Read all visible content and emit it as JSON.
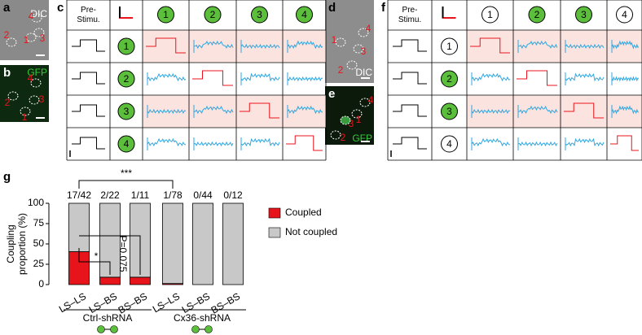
{
  "panels": {
    "a": {
      "letter": "a",
      "label": "DIC",
      "cells": [
        "4",
        "2",
        "3",
        "1"
      ]
    },
    "b": {
      "letter": "b",
      "label": "GFP",
      "cells": [
        "4",
        "2",
        "3",
        "1"
      ]
    },
    "c": {
      "letter": "c",
      "corner": "Pre-Stimu.",
      "columns": [
        "1",
        "2",
        "3",
        "4"
      ],
      "rows": [
        "1",
        "2",
        "3",
        "4"
      ]
    },
    "d": {
      "letter": "d",
      "label": "DIC",
      "cells": [
        "4",
        "1",
        "3",
        "2"
      ]
    },
    "e": {
      "letter": "e",
      "label": "GFP",
      "cells": [
        "4",
        "3",
        "1",
        "2"
      ]
    },
    "f": {
      "letter": "f",
      "corner": "Pre-Stimu.",
      "columns": [
        "1",
        "2",
        "3",
        "4"
      ],
      "rows": [
        "1",
        "2",
        "3",
        "4"
      ]
    },
    "g": {
      "letter": "g"
    }
  },
  "chart_data": {
    "type": "stacked_bar",
    "ylabel": [
      "Coupling",
      "proportion (%)"
    ],
    "categories": [
      "LS–LS",
      "LS–BS",
      "BS–BS",
      "LS–LS",
      "LS–BS",
      "BS–BS"
    ],
    "groups": [
      "Ctrl-shRNA",
      "Cx36-shRNA"
    ],
    "bar_labels": [
      "17/42",
      "2/22",
      "1/11",
      "1/78",
      "0/44",
      "0/12"
    ],
    "series": [
      {
        "name": "Coupled",
        "color": "#e8141b",
        "values": [
          40.5,
          9.1,
          9.1,
          1.3,
          0,
          0
        ]
      },
      {
        "name": "Not coupled",
        "color": "#c8c8c8",
        "values": [
          59.5,
          90.9,
          90.9,
          98.7,
          100,
          100
        ]
      }
    ],
    "ylim": [
      0,
      100
    ],
    "yticks": [
      0,
      25,
      50,
      75,
      100
    ],
    "annotations": [
      "***",
      "*",
      "P=0.075"
    ],
    "legend": "right"
  }
}
